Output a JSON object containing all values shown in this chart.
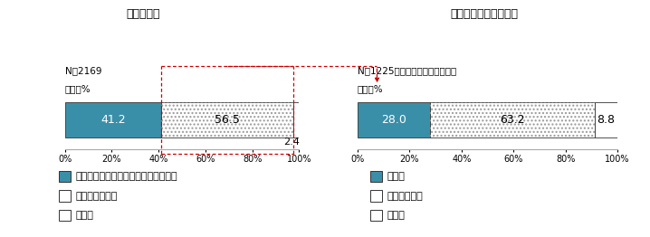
{
  "chart1": {
    "title": "避難の有無",
    "n_label": "N＝2169",
    "unit_label": "単位：%",
    "segments": [
      41.2,
      56.5,
      2.4
    ],
    "labels": [
      "41.2",
      "56.5",
      "2.4"
    ],
    "legend": [
      "避難をした（自宅２階以上へも含む）",
      "避難しなかった",
      "無回答"
    ]
  },
  "chart2": {
    "title": "避難する事を考えたか",
    "n_label": "N＝1225（避難をしなかった人）",
    "unit_label": "単位：%",
    "segments": [
      28.0,
      63.2,
      8.8
    ],
    "labels": [
      "28.0",
      "63.2",
      "8.8"
    ],
    "legend": [
      "考えた",
      "考えなかった",
      "無回答"
    ]
  },
  "teal_color": "#3a8fa8",
  "dot_color": "#b0b0b0",
  "background": "#ffffff",
  "red_dash": "#cc0000"
}
